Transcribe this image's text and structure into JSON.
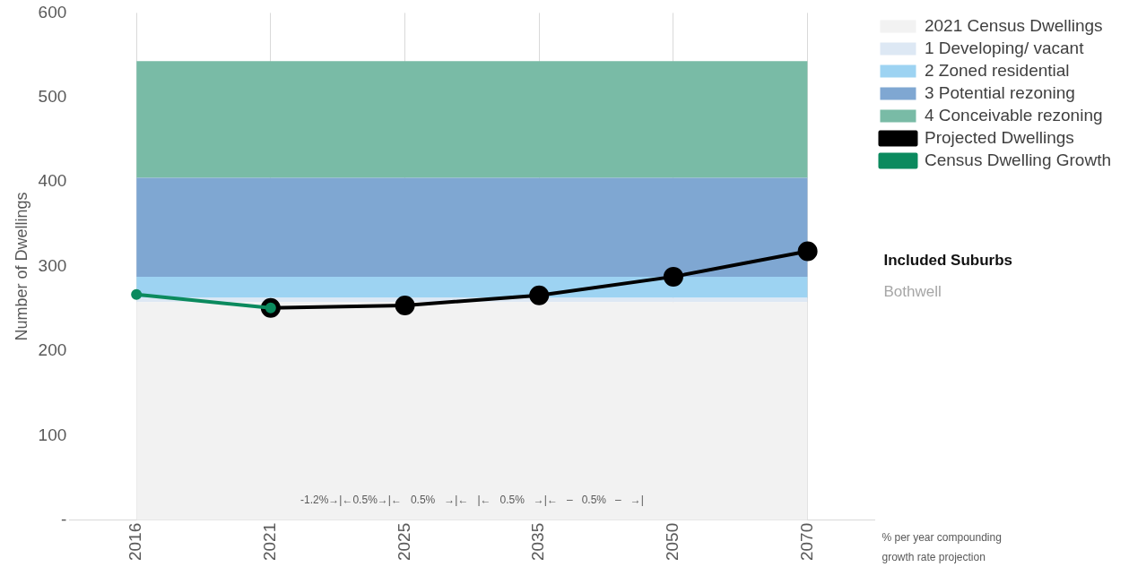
{
  "chart_data": {
    "type": "line",
    "ylabel": "Number of Dwellings",
    "categories": [
      "2016",
      "2021",
      "2025",
      "2035",
      "2050",
      "2070"
    ],
    "series": [
      {
        "name": "2021 Census Dwellings",
        "type": "area",
        "color": "#f2f2f2",
        "values": [
          258,
          258,
          258,
          258,
          258,
          258
        ]
      },
      {
        "name": "1 Developing/ vacant",
        "type": "area",
        "color": "#dde8f4",
        "values": [
          5,
          5,
          5,
          5,
          5,
          5
        ]
      },
      {
        "name": "2 Zoned residential",
        "type": "area",
        "color": "#9dd3f2",
        "values": [
          25,
          25,
          25,
          25,
          25,
          25
        ]
      },
      {
        "name": "3 Potential rezoning",
        "type": "area",
        "color": "#7fa7d2",
        "values": [
          117,
          117,
          117,
          117,
          117,
          117
        ]
      },
      {
        "name": "4 Conceivable rezoning",
        "type": "area",
        "color": "#79bba6",
        "values": [
          138,
          138,
          138,
          138,
          138,
          138
        ]
      },
      {
        "name": "Projected Dwellings",
        "color": "#000000",
        "marker": "circle",
        "values": [
          null,
          251,
          254,
          266,
          288,
          318
        ]
      },
      {
        "name": "Census Dwelling Growth",
        "color": "#0b8a5e",
        "marker": "circle",
        "values": [
          267,
          251,
          null,
          null,
          null,
          null
        ]
      }
    ],
    "stacked": true,
    "ylim": [
      0,
      600
    ],
    "yticks": [
      {
        "value": 0,
        "label": "-"
      },
      100,
      200,
      300,
      400,
      500,
      600
    ],
    "grid": "x",
    "legend": "right",
    "annotations": [
      "-1.2%→|←0.5%→|←   0.5%   →|←   |←   0.5%   →|←   –   0.5%   –   →|",
      "% per year compounding\ngrowth rate projection",
      "Included Suburbs",
      "Bothwell"
    ]
  }
}
